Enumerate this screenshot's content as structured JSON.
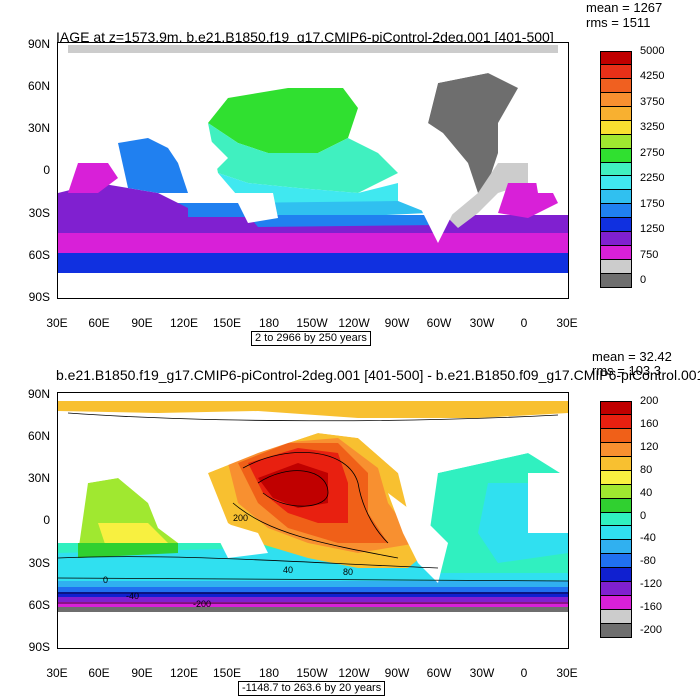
{
  "panel1": {
    "title": "IAGE at z=1573.9m, b.e21.B1850.f19_g17.CMIP6-piControl-2deg.001 [401-500]",
    "mean": "mean = 1267",
    "rms": "rms = 1511",
    "range": "2 to 2966 by 250 years",
    "lat_ticks": [
      "90N",
      "60N",
      "30N",
      "0",
      "30S",
      "60S",
      "90S"
    ],
    "lon_ticks": [
      "30E",
      "60E",
      "90E",
      "120E",
      "150E",
      "180",
      "150W",
      "120W",
      "90W",
      "60W",
      "30W",
      "0",
      "30E"
    ],
    "colorbar": {
      "labels": [
        "5000",
        "4250",
        "3750",
        "3250",
        "2750",
        "2250",
        "1750",
        "1250",
        "750",
        "0"
      ],
      "colors": [
        "#c00000",
        "#e83018",
        "#f06020",
        "#f89030",
        "#f8b030",
        "#f8e030",
        "#a0e830",
        "#30e030",
        "#40f0c0",
        "#40e8f0",
        "#30c0f0",
        "#2080f0",
        "#1030e0",
        "#8020d0",
        "#d820d8",
        "#cccccc",
        "#6e6e6e"
      ]
    }
  },
  "panel2": {
    "title": "b.e21.B1850.f19_g17.CMIP6-piControl-2deg.001 [401-500] - b.e21.B1850.f09_g17.CMIP6-piControl.001",
    "mean": "mean = 32.42",
    "rms": "rms = 103.3",
    "range": "-1148.7 to 263.6 by 20 years",
    "lat_ticks": [
      "90N",
      "60N",
      "30N",
      "0",
      "30S",
      "60S",
      "90S"
    ],
    "lon_ticks": [
      "30E",
      "60E",
      "90E",
      "120E",
      "150E",
      "180",
      "150W",
      "120W",
      "90W",
      "60W",
      "30W",
      "0",
      "30E"
    ],
    "contour_labels": [
      "200",
      "40",
      "80",
      "0",
      "-40",
      "-200"
    ],
    "colorbar": {
      "labels": [
        "200",
        "160",
        "120",
        "80",
        "40",
        "0",
        "-40",
        "-80",
        "-120",
        "-160",
        "-200"
      ],
      "colors": [
        "#c00000",
        "#e82010",
        "#f06018",
        "#f89030",
        "#f8c030",
        "#f8f040",
        "#a0e830",
        "#30d030",
        "#30f0c0",
        "#30e0f0",
        "#30b0f0",
        "#2070f0",
        "#1020d0",
        "#8020d0",
        "#d820d8",
        "#cccccc",
        "#6e6e6e"
      ]
    }
  }
}
